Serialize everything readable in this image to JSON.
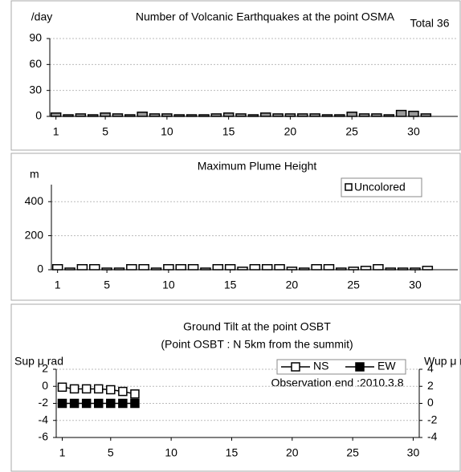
{
  "chart_data": [
    {
      "type": "bar",
      "title": "Number of Volcanic Earthquakes at the point OSMA",
      "y_label": "/day",
      "annotation": "Total 36",
      "x": [
        1,
        2,
        3,
        4,
        5,
        6,
        7,
        8,
        9,
        10,
        11,
        12,
        13,
        14,
        15,
        16,
        17,
        18,
        19,
        20,
        21,
        22,
        23,
        24,
        25,
        26,
        27,
        28,
        29,
        30,
        31
      ],
      "values": [
        2,
        0,
        1,
        0,
        2,
        1,
        0,
        3,
        1,
        1,
        0,
        0,
        0,
        1,
        2,
        1,
        0,
        2,
        1,
        1,
        1,
        1,
        0,
        0,
        3,
        1,
        1,
        0,
        5,
        4,
        1
      ],
      "color": "#999999",
      "xlim": [
        0.5,
        31.5
      ],
      "xticks": [
        1,
        5,
        10,
        15,
        20,
        25,
        30
      ],
      "ylim": [
        0,
        90
      ],
      "yticks": [
        0,
        30,
        60,
        90
      ],
      "grid": true
    },
    {
      "type": "bar",
      "title": "Maximum Plume Height",
      "y_label": "m",
      "x": [
        1,
        2,
        3,
        4,
        5,
        6,
        7,
        8,
        9,
        10,
        11,
        12,
        13,
        14,
        15,
        16,
        17,
        18,
        19,
        20,
        21,
        22,
        23,
        24,
        25,
        26,
        27,
        28,
        29,
        30,
        31
      ],
      "series": [
        {
          "name": "Uncolored",
          "color": "#ffffff",
          "values": [
            20,
            0,
            20,
            20,
            0,
            0,
            20,
            20,
            0,
            20,
            20,
            20,
            0,
            20,
            20,
            5,
            20,
            20,
            20,
            5,
            0,
            20,
            20,
            0,
            5,
            10,
            20,
            0,
            0,
            0,
            10
          ]
        }
      ],
      "xlim": [
        0.5,
        31.5
      ],
      "xticks": [
        1,
        5,
        10,
        15,
        20,
        25,
        30
      ],
      "ylim": [
        0,
        500
      ],
      "yticks": [
        0,
        200,
        400
      ],
      "grid": true,
      "legend": "upper right"
    },
    {
      "type": "line",
      "title": "Ground Tilt at the point OSBT",
      "subtitle": "(Point OSBT : N 5km from the summit)",
      "y_label": "Sup μ rad",
      "y2_label": "Wup μ rad",
      "annotation": "Observation end :2010.3.8",
      "x": [
        1,
        2,
        3,
        4,
        5,
        6,
        7
      ],
      "series": [
        {
          "name": "NS",
          "color": "#ffffff",
          "values": [
            -0.1,
            -0.3,
            -0.3,
            -0.3,
            -0.4,
            -0.6,
            -0.9
          ]
        },
        {
          "name": "EW",
          "color": "#000000",
          "axis": "y2",
          "values": [
            0,
            0,
            0,
            0,
            0,
            0,
            0
          ]
        }
      ],
      "xlim": [
        0.5,
        30.5
      ],
      "xticks": [
        1,
        5,
        10,
        15,
        20,
        25,
        30
      ],
      "ylim": [
        -6,
        2
      ],
      "yticks": [
        -6,
        -4,
        -2,
        0,
        2
      ],
      "y2lim": [
        -4,
        4
      ],
      "y2ticks": [
        -4,
        -2,
        0,
        2,
        4
      ],
      "grid": true,
      "legend": "upper right"
    }
  ]
}
